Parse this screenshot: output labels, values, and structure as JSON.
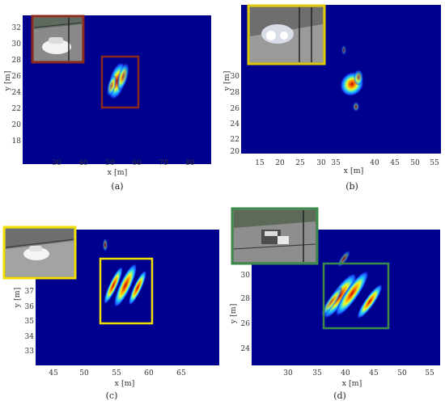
{
  "figure": {
    "panels": [
      {
        "caption": "(a)",
        "xlabel": "x [m]",
        "ylabel": "y [m]",
        "x_ticks": [
          "30",
          "40",
          "50",
          "60",
          "70",
          "80"
        ],
        "y_ticks": [
          "32",
          "30",
          "28",
          "26",
          "24",
          "22",
          "20",
          "18"
        ],
        "box_color": "#8b2a1a",
        "inset_frame_color": "#8b2a1a",
        "inset_scene": "white car on road"
      },
      {
        "caption": "(b)",
        "xlabel": "x [m]",
        "ylabel": "y [m]",
        "x_ticks": [
          "15",
          "20",
          "25",
          "30",
          "35",
          "40",
          "45",
          "50",
          "55"
        ],
        "y_ticks": [
          "30",
          "28",
          "26",
          "24",
          "22",
          "20"
        ],
        "box_color": "",
        "inset_frame_color": "#e0c900",
        "inset_scene": "car with headlights on bridge"
      },
      {
        "caption": "(c)",
        "xlabel": "x [m]",
        "ylabel": "y [m]",
        "x_ticks": [
          "45",
          "50",
          "55",
          "60",
          "65"
        ],
        "y_ticks": [
          "37",
          "36",
          "35",
          "34",
          "33"
        ],
        "box_color": "#f0e000",
        "inset_frame_color": "#f0e000",
        "inset_scene": "white car on bridge"
      },
      {
        "caption": "(d)",
        "xlabel": "x [m]",
        "ylabel": "y [m]",
        "x_ticks": [
          "30",
          "35",
          "40",
          "45",
          "50",
          "55"
        ],
        "y_ticks": [
          "30",
          "28",
          "26",
          "24"
        ],
        "box_color": "#3c8a4a",
        "inset_frame_color": "#3c8a4a",
        "inset_scene": "truck on highway"
      }
    ]
  }
}
